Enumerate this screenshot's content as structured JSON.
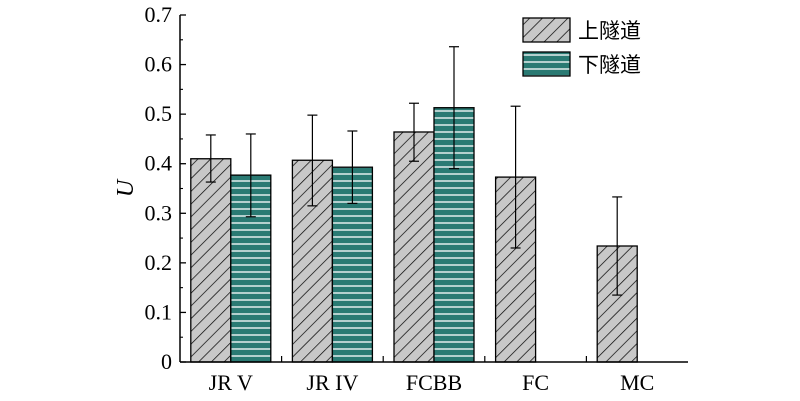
{
  "chart_data": {
    "type": "bar",
    "ylabel": "U",
    "ylim": [
      0,
      0.7
    ],
    "yticks": [
      "0",
      "0.1",
      "0.2",
      "0.3",
      "0.4",
      "0.5",
      "0.6",
      "0.7"
    ],
    "categories": [
      "JR V",
      "JR IV",
      "FCBB",
      "FC",
      "MC"
    ],
    "series": [
      {
        "name": "上隧道",
        "pattern": "diagonal-hatch",
        "fill": "#c8c8c8",
        "values": [
          0.41,
          0.407,
          0.464,
          0.373,
          0.234
        ],
        "error_low": [
          0.363,
          0.315,
          0.405,
          0.23,
          0.135
        ],
        "error_high": [
          0.458,
          0.498,
          0.522,
          0.516,
          0.333
        ]
      },
      {
        "name": "下隧道",
        "pattern": "horizontal-lines",
        "fill": "#2a7a73",
        "values": [
          0.377,
          0.393,
          0.513,
          null,
          null
        ],
        "error_low": [
          0.293,
          0.32,
          0.39,
          null,
          null
        ],
        "error_high": [
          0.46,
          0.466,
          0.636,
          null,
          null
        ]
      }
    ],
    "legend_position": "top-right",
    "grid": false
  }
}
